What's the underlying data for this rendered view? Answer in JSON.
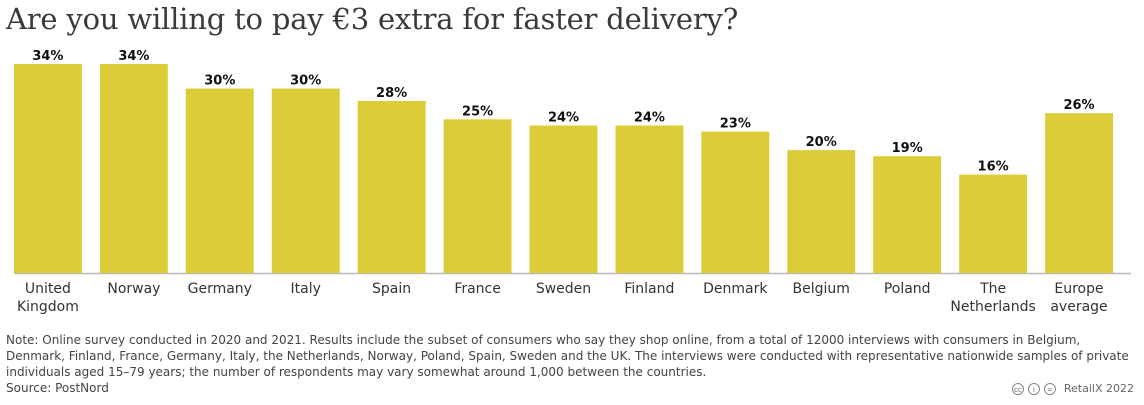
{
  "title": "Are you willing to pay €3 extra for faster delivery?",
  "chart_data": {
    "type": "bar",
    "categories": [
      "United Kingdom",
      "Norway",
      "Germany",
      "Italy",
      "Spain",
      "France",
      "Sweden",
      "Finland",
      "Denmark",
      "Belgium",
      "Poland",
      "The Netherlands",
      "Europe average"
    ],
    "category_lines": [
      [
        "United",
        "Kingdom"
      ],
      [
        "Norway"
      ],
      [
        "Germany"
      ],
      [
        "Italy"
      ],
      [
        "Spain"
      ],
      [
        "France"
      ],
      [
        "Sweden"
      ],
      [
        "Finland"
      ],
      [
        "Denmark"
      ],
      [
        "Belgium"
      ],
      [
        "Poland"
      ],
      [
        "The",
        "Netherlands"
      ],
      [
        "Europe",
        "average"
      ]
    ],
    "values": [
      34,
      34,
      30,
      30,
      28,
      25,
      24,
      24,
      23,
      20,
      19,
      16,
      26
    ],
    "value_labels": [
      "34%",
      "34%",
      "30%",
      "30%",
      "28%",
      "25%",
      "24%",
      "24%",
      "23%",
      "20%",
      "19%",
      "16%",
      "26%"
    ],
    "unit": "%",
    "ylim": [
      0,
      34
    ],
    "bar_color": "#dccc38",
    "baseline_color": "#b9b9b9",
    "grid": false,
    "legend": "none"
  },
  "note": "Note: Online survey conducted in 2020 and 2021. Results include the subset of consumers who say they shop online, from a total of 12000 interviews with consumers in Belgium, Denmark, Finland, France, Germany, Italy, the Netherlands, Norway, Poland, Spain, Sweden and the UK. The interviews were conducted with representative nationwide samples of private individuals aged 15–79 years; the number of respondents may vary somewhat around 1,000 between the countries.",
  "source": "Source: PostNord",
  "credit": {
    "license_icons": [
      "cc-icon",
      "by-icon",
      "nd-icon"
    ],
    "license_glyphs": [
      "cc",
      "i",
      "="
    ],
    "text": "RetailX 2022"
  }
}
